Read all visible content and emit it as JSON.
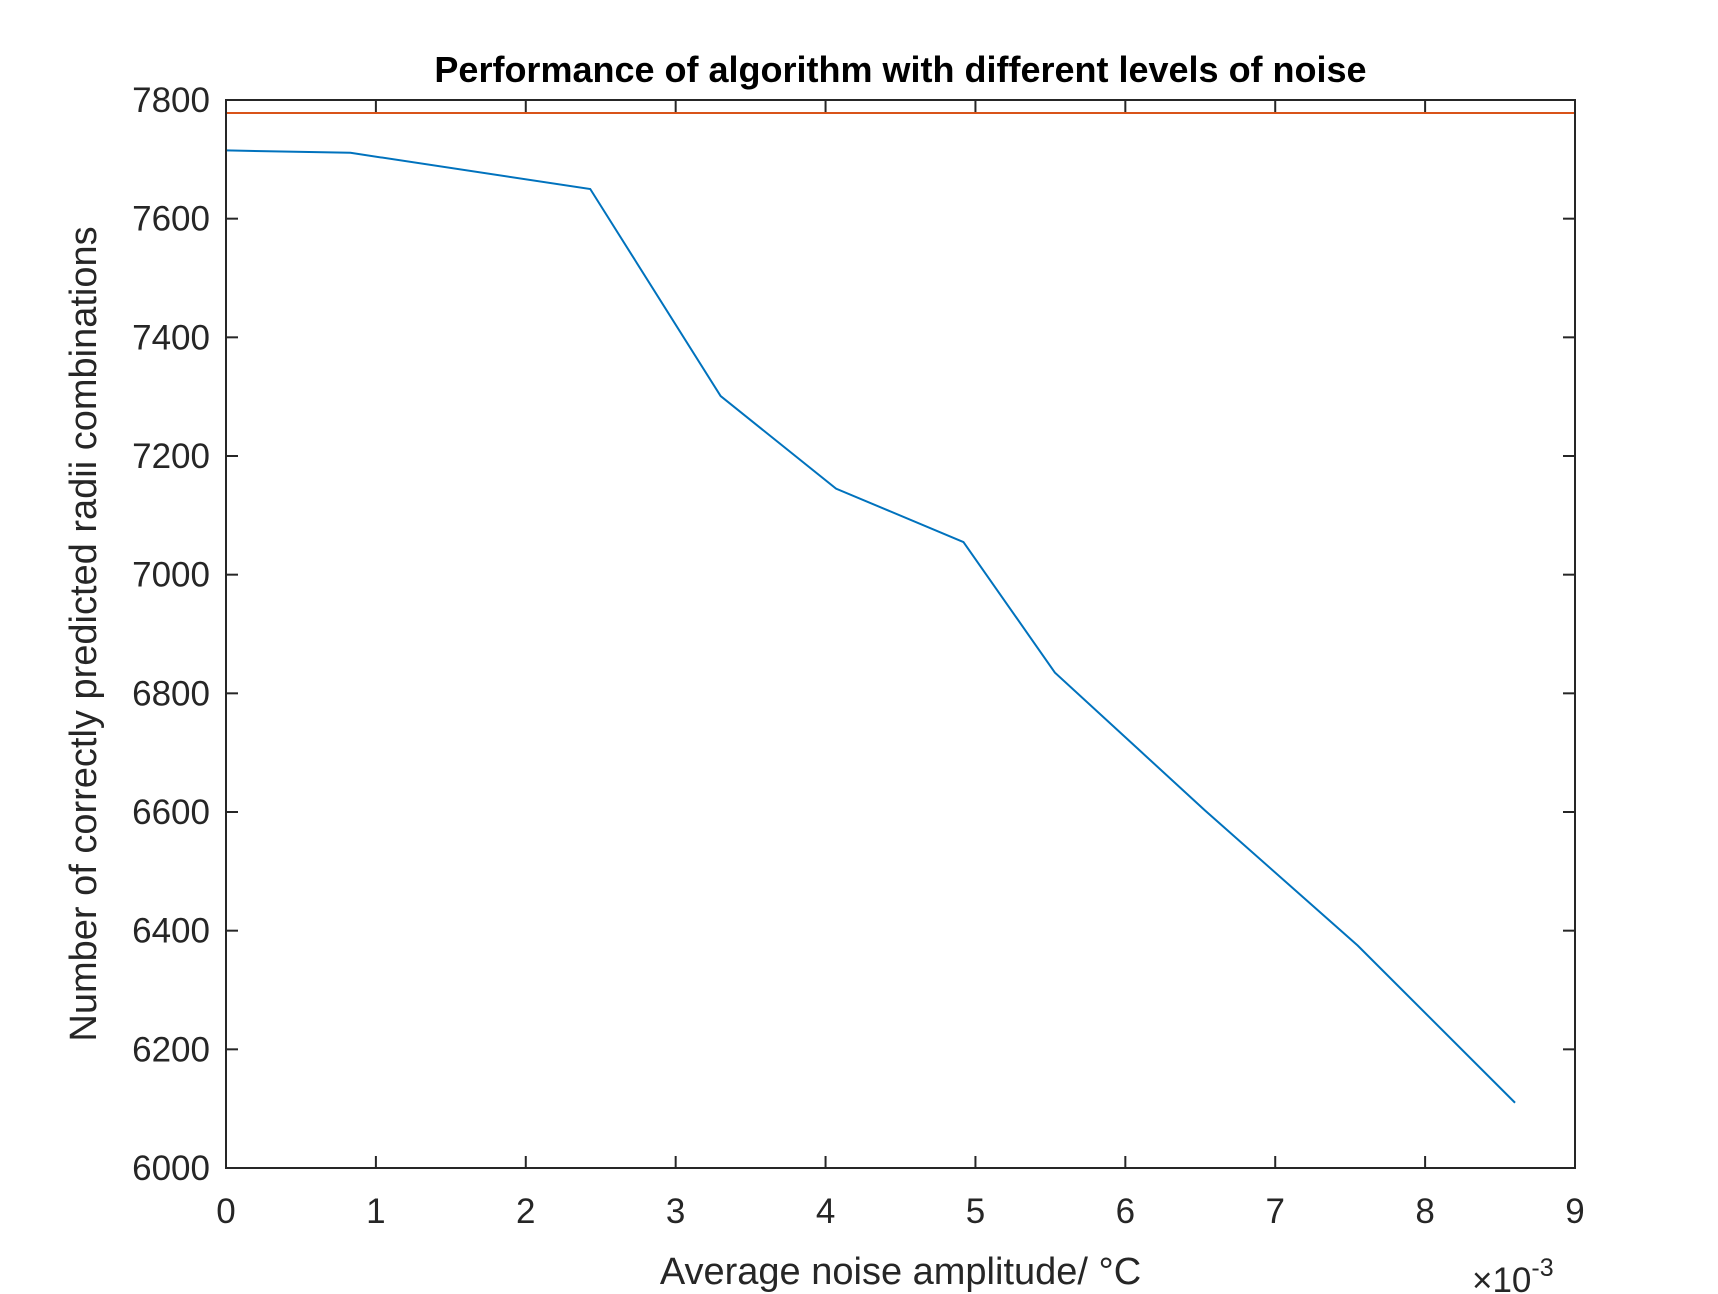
{
  "chart_data": {
    "type": "line",
    "title": "Performance of algorithm with different levels of noise",
    "xlabel": "Average noise amplitude/ °C",
    "ylabel": "Number of correctly predicted radii combinations",
    "x_exponent_label": "×10",
    "x_exponent_power": "-3",
    "xlim": [
      0,
      9
    ],
    "ylim": [
      6000,
      7800
    ],
    "xticks": [
      0,
      1,
      2,
      3,
      4,
      5,
      6,
      7,
      8,
      9
    ],
    "yticks": [
      6000,
      6200,
      6400,
      6600,
      6800,
      7000,
      7200,
      7400,
      7600,
      7800
    ],
    "grid": false,
    "legend": "none",
    "series": [
      {
        "color": "#0072BD",
        "x": [
          0,
          0.83,
          2.43,
          3.3,
          4.07,
          4.92,
          5.53,
          6.53,
          7.55,
          8.6
        ],
        "y": [
          7715,
          7711,
          7650,
          7301,
          7145,
          7055,
          6835,
          6603,
          6375,
          6110
        ]
      },
      {
        "color": "#D95319",
        "x": [
          0,
          9
        ],
        "y": [
          7778,
          7778
        ]
      }
    ]
  }
}
